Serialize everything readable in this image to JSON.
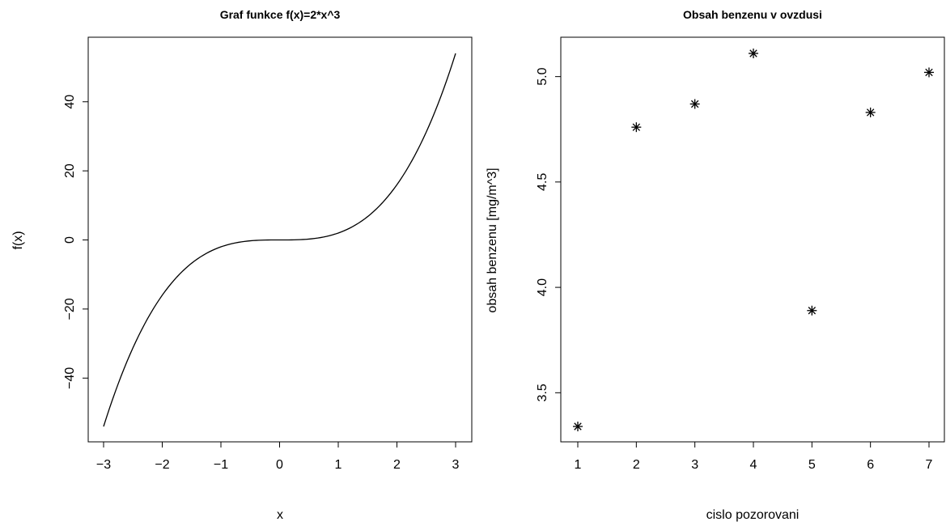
{
  "chart_data": [
    {
      "type": "line",
      "title": "Graf funkce f(x)=2*x^3",
      "xlabel": "x",
      "ylabel": "f(x)",
      "function": "2*x^3",
      "x": [
        -3,
        -2.5,
        -2,
        -1.5,
        -1,
        -0.5,
        0,
        0.5,
        1,
        1.5,
        2,
        2.5,
        3
      ],
      "y": [
        -54,
        -31.25,
        -16,
        -6.75,
        -2,
        -0.25,
        0,
        0.25,
        2,
        6.75,
        16,
        31.25,
        54
      ],
      "xlim": [
        -3,
        3
      ],
      "ylim": [
        -54,
        54
      ],
      "xticks": [
        -3,
        -2,
        -1,
        0,
        1,
        2,
        3
      ],
      "xtick_labels": [
        "−3",
        "−2",
        "−1",
        "0",
        "1",
        "2",
        "3"
      ],
      "yticks": [
        -40,
        -20,
        0,
        20,
        40
      ],
      "ytick_labels": [
        "−40",
        "−20",
        "0",
        "20",
        "40"
      ],
      "grid": false,
      "legend": "none"
    },
    {
      "type": "scatter",
      "title": "Obsah benzenu v ovzdusi",
      "xlabel": "cislo pozorovani",
      "ylabel": "obsah benzenu [mg/m^3]",
      "x": [
        1,
        2,
        3,
        4,
        5,
        6,
        7
      ],
      "y": [
        3.34,
        4.76,
        4.87,
        5.11,
        3.89,
        4.83,
        5.02
      ],
      "marker": "asterisk",
      "xlim": [
        1,
        7
      ],
      "ylim": [
        3.34,
        5.11
      ],
      "xticks": [
        1,
        2,
        3,
        4,
        5,
        6,
        7
      ],
      "xtick_labels": [
        "1",
        "2",
        "3",
        "4",
        "5",
        "6",
        "7"
      ],
      "yticks": [
        3.5,
        4.0,
        4.5,
        5.0
      ],
      "ytick_labels": [
        "3.5",
        "4.0",
        "4.5",
        "5.0"
      ],
      "grid": false,
      "legend": "none"
    }
  ]
}
